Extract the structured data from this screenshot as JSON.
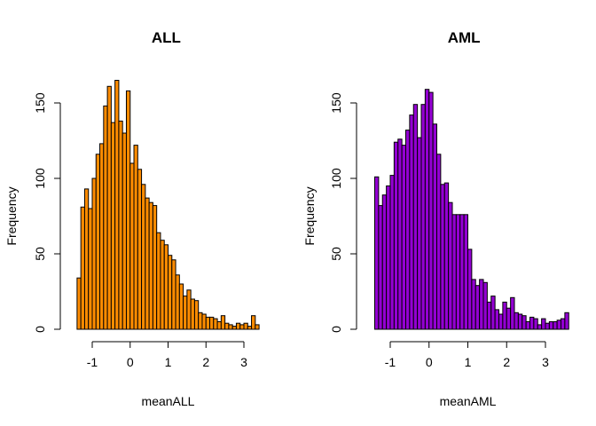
{
  "chart_data": [
    {
      "type": "bar",
      "title": "ALL",
      "xlabel": "meanALL",
      "ylabel": "Frequency",
      "color": "#FF8C00",
      "bin_width": 0.1,
      "x_start": -1.4,
      "xlim": [
        -1.4,
        3.3
      ],
      "ylim": [
        0,
        165
      ],
      "x_ticks": [
        -1,
        0,
        1,
        2,
        3
      ],
      "y_ticks": [
        0,
        50,
        100,
        150
      ],
      "values": [
        34,
        81,
        93,
        80,
        100,
        116,
        123,
        148,
        161,
        137,
        165,
        138,
        130,
        158,
        110,
        122,
        106,
        96,
        87,
        84,
        82,
        64,
        59,
        56,
        49,
        46,
        36,
        30,
        22,
        26,
        20,
        19,
        11,
        10,
        8,
        8,
        7,
        5,
        9,
        4,
        3,
        2,
        4,
        3,
        4,
        2,
        9,
        3
      ]
    },
    {
      "type": "bar",
      "title": "AML",
      "xlabel": "meanAML",
      "ylabel": "Frequency",
      "color": "#9400D3",
      "bin_width": 0.1,
      "x_start": -1.4,
      "xlim": [
        -1.4,
        3.2
      ],
      "ylim": [
        0,
        159
      ],
      "x_ticks": [
        -1,
        0,
        1,
        2,
        3
      ],
      "y_ticks": [
        0,
        50,
        100,
        150
      ],
      "values": [
        101,
        82,
        89,
        95,
        102,
        124,
        126,
        122,
        132,
        142,
        149,
        127,
        149,
        159,
        157,
        136,
        116,
        96,
        97,
        84,
        76,
        76,
        76,
        76,
        53,
        33,
        29,
        33,
        31,
        18,
        22,
        13,
        10,
        18,
        14,
        21,
        11,
        10,
        9,
        5,
        8,
        7,
        3,
        7,
        4,
        5,
        5,
        6,
        7,
        11
      ]
    }
  ]
}
